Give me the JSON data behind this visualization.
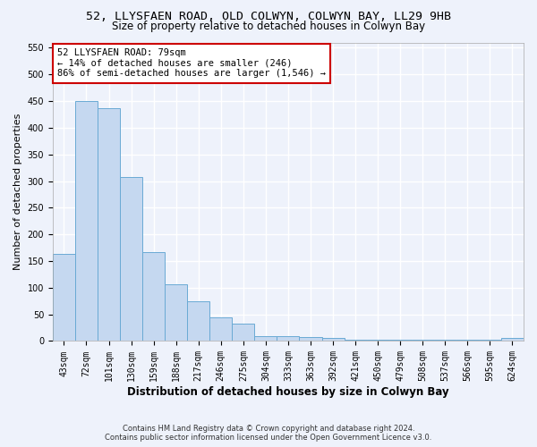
{
  "title1": "52, LLYSFAEN ROAD, OLD COLWYN, COLWYN BAY, LL29 9HB",
  "title2": "Size of property relative to detached houses in Colwyn Bay",
  "xlabel": "Distribution of detached houses by size in Colwyn Bay",
  "ylabel": "Number of detached properties",
  "categories": [
    "43sqm",
    "72sqm",
    "101sqm",
    "130sqm",
    "159sqm",
    "188sqm",
    "217sqm",
    "246sqm",
    "275sqm",
    "304sqm",
    "333sqm",
    "363sqm",
    "392sqm",
    "421sqm",
    "450sqm",
    "479sqm",
    "508sqm",
    "537sqm",
    "566sqm",
    "595sqm",
    "624sqm"
  ],
  "values": [
    163,
    450,
    437,
    307,
    167,
    106,
    75,
    45,
    33,
    10,
    10,
    8,
    5,
    3,
    3,
    3,
    3,
    3,
    3,
    3,
    5
  ],
  "bar_color": "#c5d8f0",
  "bar_edge_color": "#6aaad4",
  "annotation_box_text": "52 LLYSFAEN ROAD: 79sqm\n← 14% of detached houses are smaller (246)\n86% of semi-detached houses are larger (1,546) →",
  "annotation_box_color": "#ffffff",
  "annotation_box_edge_color": "#cc0000",
  "footer1": "Contains HM Land Registry data © Crown copyright and database right 2024.",
  "footer2": "Contains public sector information licensed under the Open Government Licence v3.0.",
  "bg_color": "#eef2fb",
  "plot_bg_color": "#eef2fb",
  "ylim": [
    0,
    560
  ],
  "yticks": [
    0,
    50,
    100,
    150,
    200,
    250,
    300,
    350,
    400,
    450,
    500,
    550
  ],
  "grid_color": "#ffffff",
  "title1_fontsize": 9.5,
  "title2_fontsize": 8.5,
  "tick_fontsize": 7,
  "ylabel_fontsize": 8,
  "xlabel_fontsize": 8.5
}
